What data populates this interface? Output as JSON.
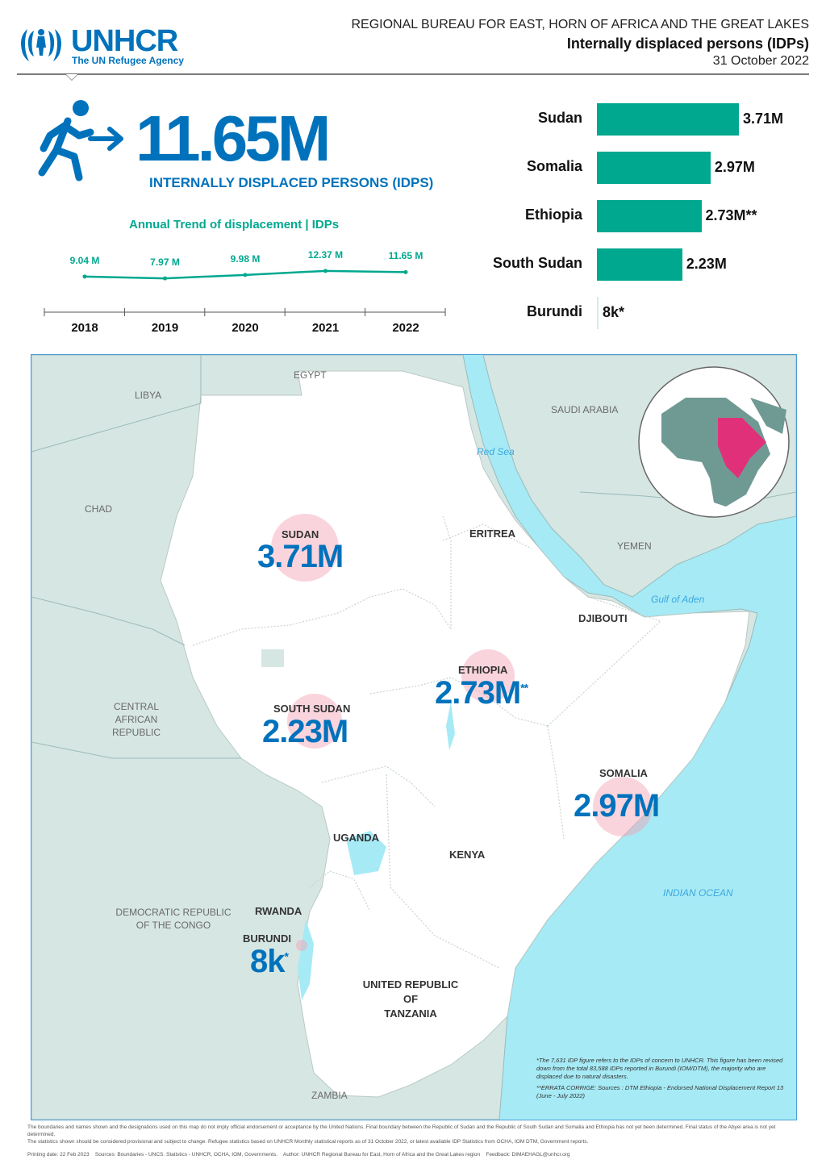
{
  "header": {
    "logo_name": "UNHCR",
    "logo_subtitle": "The UN Refugee Agency",
    "bureau": "REGIONAL BUREAU FOR EAST, HORN OF AFRICA AND THE GREAT LAKES",
    "title": "Internally displaced persons (IDPs)",
    "date": "31 October 2022"
  },
  "total": {
    "value": "11.65M",
    "label": "INTERNALLY DISPLACED PERSONS (IDPS)",
    "icon": "person-walking-arrow-icon"
  },
  "trend": {
    "title": "Annual Trend of displacement | IDPs",
    "points": [
      {
        "year": "2018",
        "label": "9.04 M",
        "value": 9.04
      },
      {
        "year": "2019",
        "label": "7.97 M",
        "value": 7.97
      },
      {
        "year": "2020",
        "label": "9.98 M",
        "value": 9.98
      },
      {
        "year": "2021",
        "label": "12.37 M",
        "value": 12.37
      },
      {
        "year": "2022",
        "label": "11.65 M",
        "value": 11.65
      }
    ]
  },
  "chart_data": {
    "type": "bar",
    "categories": [
      "Sudan",
      "Somalia",
      "Ethiopia",
      "South Sudan",
      "Burundi"
    ],
    "values": [
      3.71,
      2.97,
      2.73,
      2.23,
      0.008
    ],
    "labels": [
      "3.71M",
      "2.97M",
      "2.73M**",
      "2.23M",
      "8k*"
    ],
    "colors": {
      "bar": "#00a88f"
    }
  },
  "map": {
    "countries": {
      "libya": "LIBYA",
      "egypt": "EGYPT",
      "chad": "CHAD",
      "saudi": "SAUDI ARABIA",
      "yemen": "YEMEN",
      "eritrea": "ERITREA",
      "djibouti": "DJIBOUTI",
      "car_1": "CENTRAL",
      "car_2": "AFRICAN",
      "car_3": "REPUBLIC",
      "uganda": "UGANDA",
      "kenya": "KENYA",
      "drc_1": "DEMOCRATIC REPUBLIC",
      "drc_2": "OF THE CONGO",
      "rwanda": "RWANDA",
      "tz_1": "UNITED REPUBLIC",
      "tz_2": "OF",
      "tz_3": "TANZANIA",
      "zambia": "ZAMBIA"
    },
    "seas": {
      "red_sea": "Red Sea",
      "gulf_aden": "Gulf of Aden",
      "indian_ocean": "INDIAN OCEAN"
    },
    "callouts": [
      {
        "name": "SUDAN",
        "value": "3.71M",
        "sup": ""
      },
      {
        "name": "ETHIOPIA",
        "value": "2.73M",
        "sup": "**"
      },
      {
        "name": "SOUTH SUDAN",
        "value": "2.23M",
        "sup": ""
      },
      {
        "name": "SOMALIA",
        "value": "2.97M",
        "sup": ""
      },
      {
        "name": "BURUNDI",
        "value": "8k",
        "sup": "*"
      }
    ],
    "notes": {
      "note1": "*The 7,631 IDP figure refers to the IDPs of concern to UNHCR. This figure has been revised down from the total 83,588 IDPs reported in Burundi (IOM/DTM), the majority who are displaced due to natural disasters.",
      "note2": "**ERRATA CORRIGE: Sources : DTM Ethiopia - Endorsed National Displacement Report 13 (June - July 2022)"
    }
  },
  "footer": {
    "disclaimer": "The boundaries and names shown and the designations used on this map do not imply official endorsement or acceptance by the United Nations. Final boundary between the Republic of Sudan and the Republic of South Sudan and Somalia and Ethiopia has not yet been determined. Final status of the Abyei area is not yet determined.",
    "stats": "The statistics shown should be considered provisional and subject to change. Refugee statistics based on UNHCR Monthly statistical reports as of 31 October 2022, or latest available IDP Statistics from OCHA, IOM DTM, Government reports.",
    "printing": "Printing date: 22 Feb 2023",
    "sources": "Sources: Boundaries - UNCS. Statistics - UNHCR, OCHA, IOM, Governments.",
    "author": "Author: UNHCR Regional Bureau for East, Horn of Africa and the Great Lakes region",
    "feedback": "Feedback: DIMAEHAGL@unhcr.org"
  }
}
